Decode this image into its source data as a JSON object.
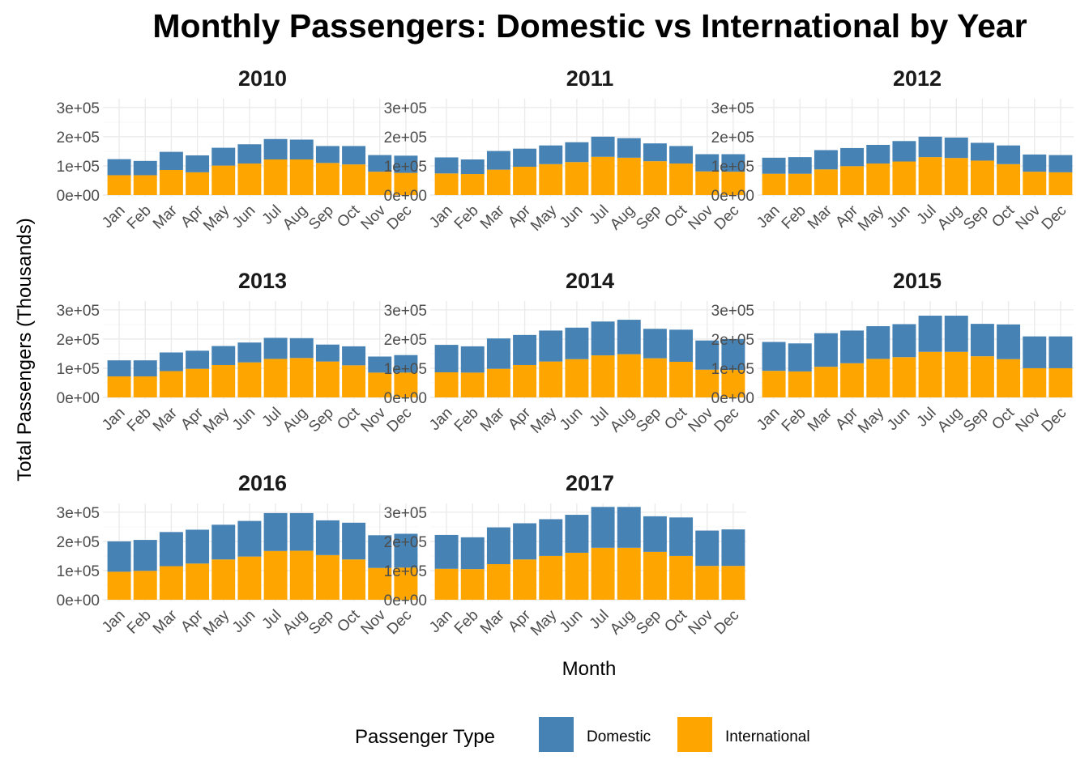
{
  "chart_data": {
    "type": "bar",
    "stacked": true,
    "title": "Monthly Passengers: Domestic vs International by Year",
    "xlabel": "Month",
    "ylabel": "Total Passengers (Thousands)",
    "ylim": [
      0,
      330000
    ],
    "yticks": [
      0,
      100000,
      200000,
      300000
    ],
    "ytick_labels": [
      "0e+00",
      "1e+05",
      "2e+05",
      "3e+05"
    ],
    "categories": [
      "Jan",
      "Feb",
      "Mar",
      "Apr",
      "May",
      "Jun",
      "Jul",
      "Aug",
      "Sep",
      "Oct",
      "Nov",
      "Dec"
    ],
    "legend": {
      "title": "Passenger Type",
      "position": "bottom",
      "entries": [
        {
          "name": "Domestic",
          "color": "#4682B4"
        },
        {
          "name": "International",
          "color": "#FFA500"
        }
      ]
    },
    "panels": [
      {
        "year": "2010",
        "international": [
          68000,
          68000,
          86000,
          78000,
          101000,
          108000,
          122000,
          122000,
          110000,
          105000,
          80000,
          76000
        ],
        "domestic": [
          55000,
          49000,
          62000,
          58000,
          61000,
          66000,
          70000,
          68000,
          58000,
          63000,
          57000,
          59000
        ]
      },
      {
        "year": "2011",
        "international": [
          74000,
          72000,
          87000,
          97000,
          106000,
          113000,
          131000,
          128000,
          116000,
          108000,
          81000,
          80000
        ],
        "domestic": [
          55000,
          50000,
          64000,
          62000,
          64000,
          68000,
          69000,
          67000,
          61000,
          60000,
          59000,
          60000
        ]
      },
      {
        "year": "2012",
        "international": [
          73000,
          73000,
          88000,
          99000,
          108000,
          115000,
          130000,
          127000,
          118000,
          106000,
          80000,
          78000
        ],
        "domestic": [
          55000,
          57000,
          66000,
          62000,
          64000,
          70000,
          70000,
          70000,
          61000,
          64000,
          59000,
          59000
        ]
      },
      {
        "year": "2013",
        "international": [
          72000,
          72000,
          90000,
          98000,
          111000,
          120000,
          132000,
          135000,
          123000,
          110000,
          85000,
          85000
        ],
        "domestic": [
          55000,
          55000,
          64000,
          62000,
          65000,
          68000,
          72000,
          68000,
          58000,
          65000,
          55000,
          60000
        ]
      },
      {
        "year": "2014",
        "international": [
          86000,
          85000,
          98000,
          111000,
          123000,
          131000,
          144000,
          148000,
          134000,
          122000,
          95000,
          94000
        ],
        "domestic": [
          94000,
          90000,
          104000,
          103000,
          106000,
          108000,
          116000,
          118000,
          101000,
          110000,
          100000,
          106000
        ]
      },
      {
        "year": "2015",
        "international": [
          91000,
          89000,
          105000,
          117000,
          132000,
          138000,
          156000,
          156000,
          141000,
          131000,
          100000,
          100000
        ],
        "domestic": [
          99000,
          96000,
          115000,
          112000,
          112000,
          113000,
          124000,
          124000,
          111000,
          119000,
          109000,
          109000
        ]
      },
      {
        "year": "2016",
        "international": [
          96000,
          99000,
          115000,
          124000,
          138000,
          148000,
          167000,
          168000,
          153000,
          138000,
          109000,
          110000
        ],
        "domestic": [
          104000,
          106000,
          117000,
          116000,
          119000,
          122000,
          130000,
          129000,
          119000,
          126000,
          112000,
          116000
        ]
      },
      {
        "year": "2017",
        "international": [
          106000,
          105000,
          122000,
          138000,
          150000,
          161000,
          178000,
          178000,
          164000,
          150000,
          116000,
          116000
        ],
        "domestic": [
          116000,
          109000,
          126000,
          124000,
          126000,
          130000,
          140000,
          140000,
          122000,
          132000,
          121000,
          125000
        ]
      }
    ]
  }
}
